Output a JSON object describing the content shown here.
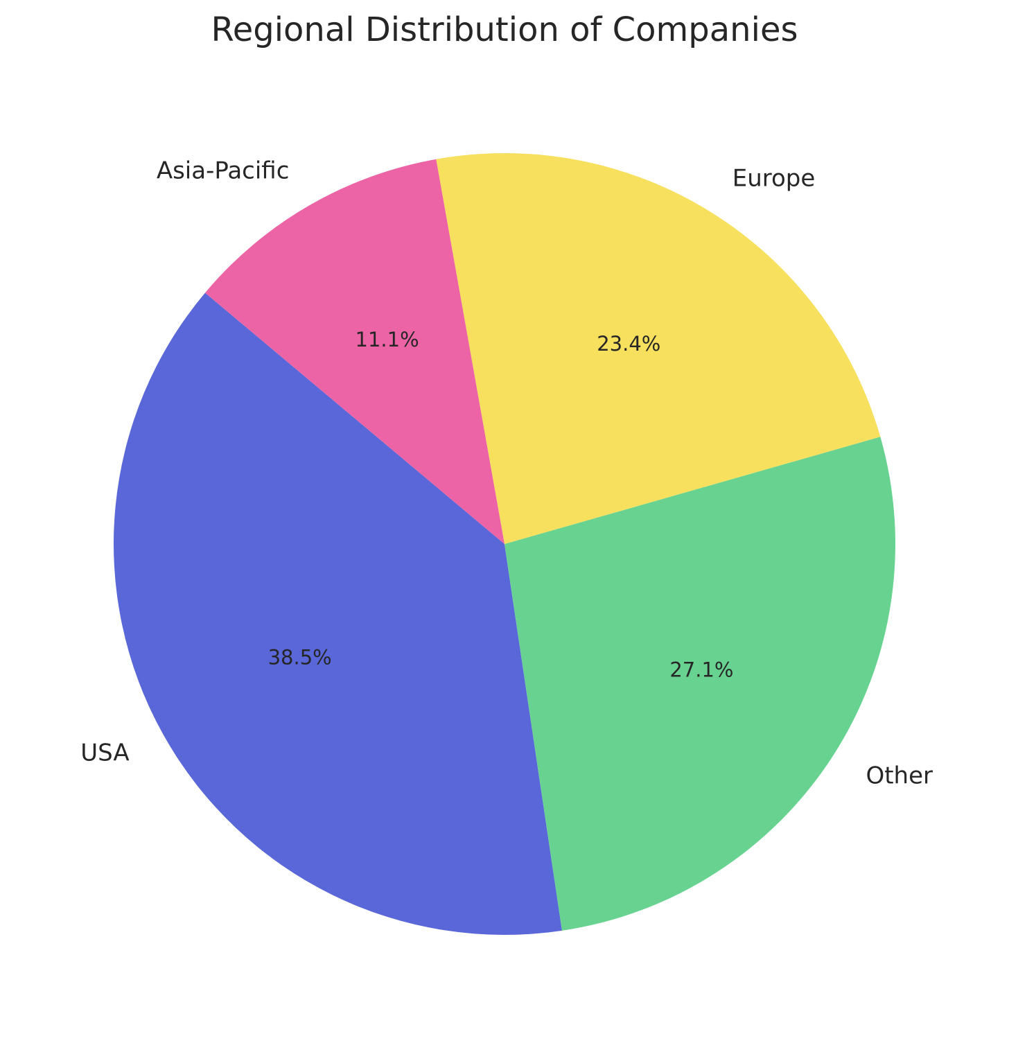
{
  "chart_data": {
    "type": "pie",
    "title": "Regional Distribution of Companies",
    "categories": [
      "USA",
      "Other",
      "Europe",
      "Asia-Pacific"
    ],
    "values": [
      38.5,
      27.1,
      23.4,
      11.1
    ],
    "value_labels": [
      "38.5%",
      "27.1%",
      "23.4%",
      "11.1%"
    ],
    "colors": [
      "#5a67d8",
      "#68d391",
      "#f6e05e",
      "#ed64a6"
    ]
  }
}
